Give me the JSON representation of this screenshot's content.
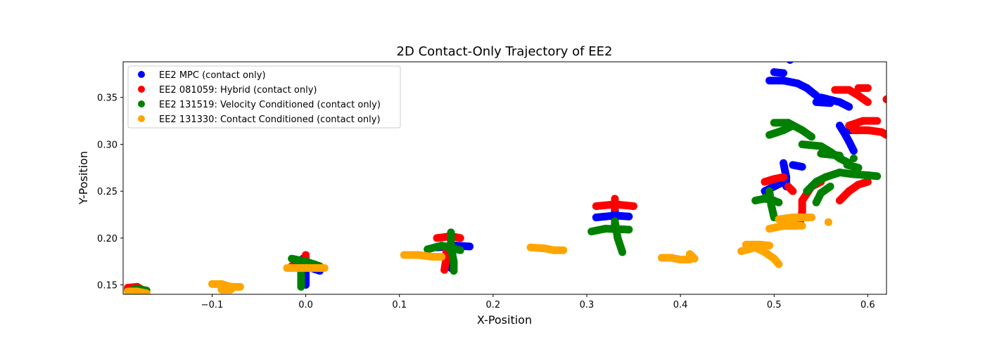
{
  "chart_data": {
    "type": "scatter",
    "title": "2D Contact-Only Trajectory of EE2",
    "xlabel": "X-Position",
    "ylabel": "Y-Position",
    "xlim": [
      -0.195,
      0.62
    ],
    "ylim": [
      0.14,
      0.388
    ],
    "xticks": [
      -0.1,
      0.0,
      0.1,
      0.2,
      0.3,
      0.4,
      0.5,
      0.6
    ],
    "xtick_labels": [
      "−0.1",
      "0.0",
      "0.1",
      "0.2",
      "0.3",
      "0.4",
      "0.5",
      "0.6"
    ],
    "yticks": [
      0.15,
      0.2,
      0.25,
      0.3,
      0.35
    ],
    "ytick_labels": [
      "0.15",
      "0.20",
      "0.25",
      "0.30",
      "0.35"
    ],
    "grid": false,
    "legend": "top-left",
    "series": [
      {
        "name": "EE2 MPC (contact only)",
        "color": "#0000ff",
        "segments": [
          [
            [
              -0.19,
              0.145
            ],
            [
              -0.18,
              0.146
            ],
            [
              -0.175,
              0.144
            ]
          ],
          [
            [
              -0.015,
              0.168
            ],
            [
              0.0,
              0.17
            ],
            [
              0.015,
              0.165
            ]
          ],
          [
            [
              -0.003,
              0.178
            ],
            [
              0.0,
              0.165
            ],
            [
              0.0,
              0.15
            ]
          ],
          [
            [
              0.14,
              0.19
            ],
            [
              0.16,
              0.192
            ],
            [
              0.175,
              0.191
            ]
          ],
          [
            [
              0.155,
              0.2
            ],
            [
              0.155,
              0.183
            ],
            [
              0.155,
              0.168
            ]
          ],
          [
            [
              0.31,
              0.222
            ],
            [
              0.33,
              0.224
            ],
            [
              0.345,
              0.223
            ]
          ],
          [
            [
              0.33,
              0.236
            ],
            [
              0.33,
              0.225
            ],
            [
              0.33,
              0.212
            ]
          ],
          [
            [
              0.49,
              0.25
            ],
            [
              0.5,
              0.255
            ],
            [
              0.51,
              0.26
            ]
          ],
          [
            [
              0.51,
              0.28
            ],
            [
              0.513,
              0.265
            ],
            [
              0.513,
              0.255
            ]
          ],
          [
            [
              0.52,
              0.278
            ],
            [
              0.53,
              0.276
            ]
          ],
          [
            [
              0.495,
              0.368
            ],
            [
              0.51,
              0.368
            ],
            [
              0.525,
              0.365
            ],
            [
              0.535,
              0.36
            ],
            [
              0.545,
              0.352
            ]
          ],
          [
            [
              0.5,
              0.377
            ],
            [
              0.51,
              0.376
            ]
          ],
          [
            [
              0.55,
              0.35
            ],
            [
              0.57,
              0.345
            ],
            [
              0.58,
              0.34
            ]
          ],
          [
            [
              0.545,
              0.345
            ],
            [
              0.56,
              0.344
            ]
          ],
          [
            [
              0.57,
              0.32
            ],
            [
              0.575,
              0.312
            ],
            [
              0.58,
              0.303
            ],
            [
              0.585,
              0.293
            ]
          ],
          [
            [
              0.58,
              0.315
            ],
            [
              0.59,
              0.315
            ]
          ],
          [
            [
              0.517,
              0.39
            ]
          ]
        ]
      },
      {
        "name": "EE2 081059: Hybrid (contact only)",
        "color": "#ff0000",
        "segments": [
          [
            [
              -0.19,
              0.147
            ],
            [
              -0.18,
              0.148
            ],
            [
              -0.175,
              0.145
            ]
          ],
          [
            [
              -0.015,
              0.17
            ],
            [
              0.0,
              0.172
            ],
            [
              0.015,
              0.168
            ]
          ],
          [
            [
              0.0,
              0.182
            ],
            [
              0.0,
              0.175
            ]
          ],
          [
            [
              0.14,
              0.2
            ],
            [
              0.155,
              0.202
            ],
            [
              0.165,
              0.2
            ]
          ],
          [
            [
              0.15,
              0.19
            ],
            [
              0.15,
              0.178
            ],
            [
              0.148,
              0.166
            ]
          ],
          [
            [
              0.31,
              0.234
            ],
            [
              0.33,
              0.236
            ],
            [
              0.35,
              0.234
            ]
          ],
          [
            [
              0.33,
              0.242
            ],
            [
              0.33,
              0.232
            ]
          ],
          [
            [
              0.49,
              0.26
            ],
            [
              0.5,
              0.263
            ],
            [
              0.51,
              0.265
            ]
          ],
          [
            [
              0.515,
              0.255
            ],
            [
              0.52,
              0.25
            ]
          ],
          [
            [
              0.53,
              0.24
            ],
            [
              0.54,
              0.255
            ],
            [
              0.55,
              0.26
            ]
          ],
          [
            [
              0.53,
              0.24
            ],
            [
              0.53,
              0.228
            ],
            [
              0.528,
              0.218
            ]
          ],
          [
            [
              0.57,
              0.24
            ],
            [
              0.58,
              0.25
            ],
            [
              0.59,
              0.257
            ],
            [
              0.6,
              0.26
            ]
          ],
          [
            [
              0.565,
              0.358
            ],
            [
              0.58,
              0.358
            ],
            [
              0.59,
              0.352
            ],
            [
              0.6,
              0.345
            ]
          ],
          [
            [
              0.59,
              0.36
            ],
            [
              0.6,
              0.36
            ]
          ],
          [
            [
              0.58,
              0.32
            ],
            [
              0.595,
              0.325
            ],
            [
              0.61,
              0.325
            ]
          ],
          [
            [
              0.585,
              0.315
            ],
            [
              0.6,
              0.315
            ],
            [
              0.615,
              0.313
            ],
            [
              0.62,
              0.31
            ]
          ],
          [
            [
              0.62,
              0.348
            ]
          ]
        ]
      },
      {
        "name": "EE2 131519: Velocity Conditioned (contact only)",
        "color": "#008000",
        "segments": [
          [
            [
              -0.19,
              0.143
            ],
            [
              -0.18,
              0.146
            ],
            [
              -0.17,
              0.144
            ]
          ],
          [
            [
              -0.015,
              0.178
            ],
            [
              0.0,
              0.175
            ],
            [
              0.015,
              0.17
            ]
          ],
          [
            [
              -0.005,
              0.17
            ],
            [
              -0.005,
              0.16
            ],
            [
              -0.005,
              0.148
            ]
          ],
          [
            [
              0.13,
              0.188
            ],
            [
              0.145,
              0.192
            ],
            [
              0.165,
              0.187
            ]
          ],
          [
            [
              0.155,
              0.206
            ],
            [
              0.155,
              0.19
            ],
            [
              0.158,
              0.175
            ],
            [
              0.158,
              0.165
            ]
          ],
          [
            [
              0.305,
              0.207
            ],
            [
              0.32,
              0.21
            ],
            [
              0.345,
              0.209
            ]
          ],
          [
            [
              0.33,
              0.218
            ],
            [
              0.333,
              0.2
            ],
            [
              0.338,
              0.185
            ]
          ],
          [
            [
              0.48,
              0.24
            ],
            [
              0.49,
              0.242
            ],
            [
              0.5,
              0.24
            ]
          ],
          [
            [
              0.495,
              0.25
            ],
            [
              0.497,
              0.235
            ],
            [
              0.5,
              0.222
            ]
          ],
          [
            [
              0.49,
              0.243
            ],
            [
              0.505,
              0.238
            ]
          ],
          [
            [
              0.495,
              0.31
            ],
            [
              0.51,
              0.315
            ],
            [
              0.52,
              0.32
            ]
          ],
          [
            [
              0.5,
              0.323
            ],
            [
              0.515,
              0.323
            ],
            [
              0.53,
              0.315
            ],
            [
              0.54,
              0.308
            ]
          ],
          [
            [
              0.53,
              0.3
            ],
            [
              0.55,
              0.298
            ],
            [
              0.56,
              0.292
            ],
            [
              0.57,
              0.285
            ],
            [
              0.58,
              0.28
            ]
          ],
          [
            [
              0.55,
              0.29
            ],
            [
              0.57,
              0.288
            ]
          ],
          [
            [
              0.535,
              0.25
            ],
            [
              0.545,
              0.26
            ],
            [
              0.555,
              0.265
            ],
            [
              0.57,
              0.27
            ]
          ],
          [
            [
              0.545,
              0.238
            ],
            [
              0.55,
              0.248
            ],
            [
              0.56,
              0.255
            ]
          ],
          [
            [
              0.57,
              0.27
            ],
            [
              0.585,
              0.268
            ],
            [
              0.6,
              0.267
            ],
            [
              0.61,
              0.266
            ]
          ],
          [
            [
              0.578,
              0.278
            ],
            [
              0.59,
              0.275
            ]
          ],
          [
            [
              0.585,
              0.285
            ]
          ]
        ]
      },
      {
        "name": "EE2 131330: Contact Conditioned (contact only)",
        "color": "#ffa500",
        "segments": [
          [
            [
              -0.19,
              0.143
            ],
            [
              -0.18,
              0.143
            ],
            [
              -0.17,
              0.141
            ]
          ],
          [
            [
              -0.1,
              0.151
            ],
            [
              -0.09,
              0.151
            ],
            [
              -0.08,
              0.148
            ],
            [
              -0.07,
              0.148
            ]
          ],
          [
            [
              -0.09,
              0.145
            ],
            [
              -0.08,
              0.145
            ]
          ],
          [
            [
              -0.02,
              0.168
            ],
            [
              0.0,
              0.168
            ],
            [
              0.02,
              0.168
            ]
          ],
          [
            [
              0.105,
              0.182
            ],
            [
              0.12,
              0.182
            ],
            [
              0.135,
              0.18
            ],
            [
              0.145,
              0.18
            ]
          ],
          [
            [
              0.24,
              0.19
            ],
            [
              0.255,
              0.189
            ],
            [
              0.265,
              0.187
            ],
            [
              0.275,
              0.187
            ]
          ],
          [
            [
              0.38,
              0.179
            ],
            [
              0.39,
              0.179
            ],
            [
              0.4,
              0.177
            ],
            [
              0.41,
              0.177
            ]
          ],
          [
            [
              0.41,
              0.183
            ],
            [
              0.415,
              0.178
            ]
          ],
          [
            [
              0.465,
              0.186
            ],
            [
              0.48,
              0.19
            ],
            [
              0.49,
              0.185
            ],
            [
              0.5,
              0.178
            ],
            [
              0.505,
              0.172
            ]
          ],
          [
            [
              0.47,
              0.193
            ],
            [
              0.485,
              0.193
            ],
            [
              0.495,
              0.192
            ]
          ],
          [
            [
              0.495,
              0.21
            ],
            [
              0.51,
              0.213
            ],
            [
              0.525,
              0.213
            ]
          ],
          [
            [
              0.505,
              0.22
            ],
            [
              0.52,
              0.222
            ],
            [
              0.54,
              0.222
            ]
          ],
          [
            [
              0.51,
              0.215
            ],
            [
              0.53,
              0.213
            ]
          ],
          [
            [
              0.558,
              0.217
            ]
          ]
        ]
      }
    ]
  }
}
